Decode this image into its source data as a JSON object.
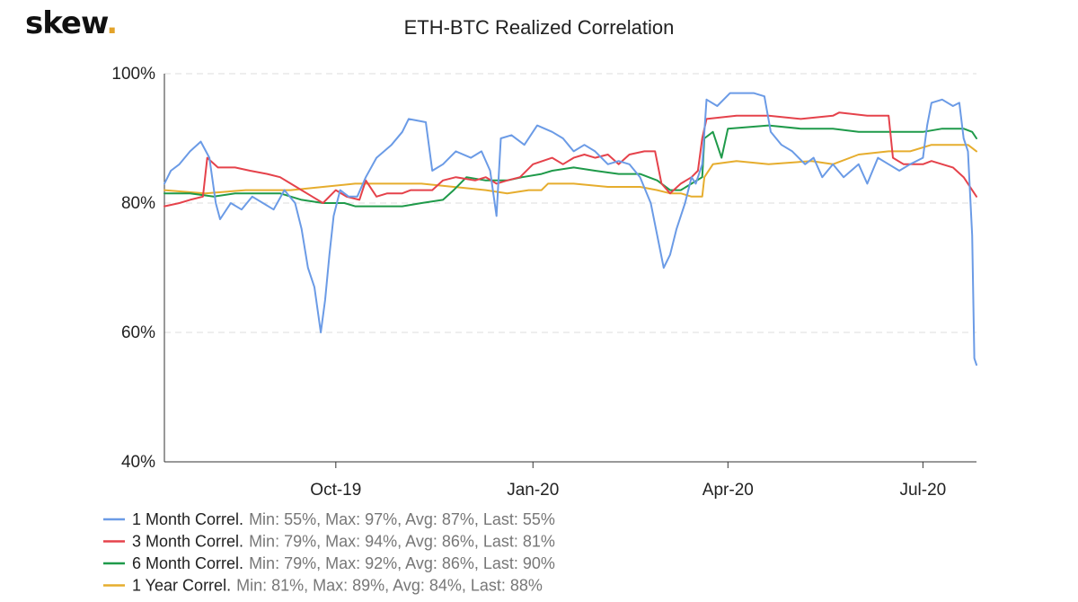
{
  "brand": {
    "text": "skew",
    "dot": "."
  },
  "chart_data": {
    "type": "line",
    "title": "ETH-BTC Realized Correlation",
    "xlabel": "",
    "ylabel": "",
    "x_range": [
      "2019-07-13",
      "2020-07-26"
    ],
    "x_ticks": [
      {
        "date": "2019-10-01",
        "label": "Oct-19"
      },
      {
        "date": "2020-01-01",
        "label": "Jan-20"
      },
      {
        "date": "2020-04-01",
        "label": "Apr-20"
      },
      {
        "date": "2020-07-01",
        "label": "Jul-20"
      }
    ],
    "ylim": [
      40,
      100
    ],
    "y_ticks": [
      {
        "value": 40,
        "label": "40%"
      },
      {
        "value": 60,
        "label": "60%"
      },
      {
        "value": 80,
        "label": "80%"
      },
      {
        "value": 100,
        "label": "100%"
      }
    ],
    "grid": "horizontal",
    "legend_position": "bottom-left",
    "series": [
      {
        "name": "1 Month Correl.",
        "stats": "Min: 55%, Max: 97%, Avg: 87%, Last: 55%",
        "color": "#6b9be6",
        "points": [
          [
            "2019-07-13",
            83
          ],
          [
            "2019-07-16",
            85
          ],
          [
            "2019-07-20",
            86
          ],
          [
            "2019-07-25",
            88
          ],
          [
            "2019-07-30",
            89.5
          ],
          [
            "2019-08-03",
            87
          ],
          [
            "2019-08-06",
            80
          ],
          [
            "2019-08-08",
            77.5
          ],
          [
            "2019-08-13",
            80
          ],
          [
            "2019-08-18",
            79
          ],
          [
            "2019-08-23",
            81
          ],
          [
            "2019-08-28",
            80
          ],
          [
            "2019-09-02",
            79
          ],
          [
            "2019-09-07",
            82
          ],
          [
            "2019-09-12",
            80
          ],
          [
            "2019-09-15",
            76
          ],
          [
            "2019-09-18",
            70
          ],
          [
            "2019-09-21",
            67
          ],
          [
            "2019-09-24",
            60
          ],
          [
            "2019-09-26",
            65
          ],
          [
            "2019-09-28",
            72
          ],
          [
            "2019-09-30",
            78
          ],
          [
            "2019-10-03",
            82
          ],
          [
            "2019-10-07",
            81
          ],
          [
            "2019-10-11",
            81
          ],
          [
            "2019-10-15",
            84
          ],
          [
            "2019-10-20",
            87
          ],
          [
            "2019-10-27",
            89
          ],
          [
            "2019-11-01",
            91
          ],
          [
            "2019-11-04",
            93
          ],
          [
            "2019-11-12",
            92.5
          ],
          [
            "2019-11-15",
            85
          ],
          [
            "2019-11-20",
            86
          ],
          [
            "2019-11-26",
            88
          ],
          [
            "2019-12-03",
            87
          ],
          [
            "2019-12-08",
            88
          ],
          [
            "2019-12-12",
            85
          ],
          [
            "2019-12-15",
            78
          ],
          [
            "2019-12-17",
            90
          ],
          [
            "2019-12-22",
            90.5
          ],
          [
            "2019-12-28",
            89
          ],
          [
            "2020-01-03",
            92
          ],
          [
            "2020-01-10",
            91
          ],
          [
            "2020-01-15",
            90
          ],
          [
            "2020-01-20",
            88
          ],
          [
            "2020-01-25",
            89
          ],
          [
            "2020-01-30",
            88
          ],
          [
            "2020-02-05",
            86
          ],
          [
            "2020-02-10",
            86.5
          ],
          [
            "2020-02-15",
            86
          ],
          [
            "2020-02-20",
            84
          ],
          [
            "2020-02-25",
            80
          ],
          [
            "2020-02-28",
            75
          ],
          [
            "2020-03-02",
            70
          ],
          [
            "2020-03-05",
            72
          ],
          [
            "2020-03-08",
            76
          ],
          [
            "2020-03-12",
            80
          ],
          [
            "2020-03-15",
            84
          ],
          [
            "2020-03-17",
            83
          ],
          [
            "2020-03-20",
            86
          ],
          [
            "2020-03-22",
            96
          ],
          [
            "2020-03-27",
            95
          ],
          [
            "2020-04-02",
            97
          ],
          [
            "2020-04-13",
            97
          ],
          [
            "2020-04-18",
            96.5
          ],
          [
            "2020-04-21",
            91
          ],
          [
            "2020-04-26",
            89
          ],
          [
            "2020-05-01",
            88
          ],
          [
            "2020-05-07",
            86
          ],
          [
            "2020-05-11",
            87
          ],
          [
            "2020-05-15",
            84
          ],
          [
            "2020-05-20",
            86
          ],
          [
            "2020-05-25",
            84
          ],
          [
            "2020-06-01",
            86
          ],
          [
            "2020-06-05",
            83
          ],
          [
            "2020-06-10",
            87
          ],
          [
            "2020-06-15",
            86
          ],
          [
            "2020-06-20",
            85
          ],
          [
            "2020-06-25",
            86
          ],
          [
            "2020-07-01",
            87
          ],
          [
            "2020-07-03",
            92
          ],
          [
            "2020-07-05",
            95.5
          ],
          [
            "2020-07-10",
            96
          ],
          [
            "2020-07-15",
            95
          ],
          [
            "2020-07-18",
            95.5
          ],
          [
            "2020-07-20",
            90
          ],
          [
            "2020-07-22",
            88
          ],
          [
            "2020-07-24",
            75
          ],
          [
            "2020-07-25",
            56
          ],
          [
            "2020-07-26",
            55
          ]
        ]
      },
      {
        "name": "3 Month Correl.",
        "stats": "Min: 79%, Max: 94%, Avg: 86%, Last: 81%",
        "color": "#e5424b",
        "points": [
          [
            "2019-07-13",
            79.5
          ],
          [
            "2019-07-20",
            80
          ],
          [
            "2019-07-25",
            80.5
          ],
          [
            "2019-07-31",
            81
          ],
          [
            "2019-08-02",
            87
          ],
          [
            "2019-08-07",
            85.5
          ],
          [
            "2019-08-15",
            85.5
          ],
          [
            "2019-08-22",
            85
          ],
          [
            "2019-08-30",
            84.5
          ],
          [
            "2019-09-05",
            84
          ],
          [
            "2019-09-10",
            83
          ],
          [
            "2019-09-15",
            82
          ],
          [
            "2019-09-20",
            81
          ],
          [
            "2019-09-25",
            80
          ],
          [
            "2019-10-01",
            82
          ],
          [
            "2019-10-06",
            81
          ],
          [
            "2019-10-12",
            80.5
          ],
          [
            "2019-10-15",
            83.5
          ],
          [
            "2019-10-20",
            81
          ],
          [
            "2019-10-25",
            81.5
          ],
          [
            "2019-11-01",
            81.5
          ],
          [
            "2019-11-05",
            82
          ],
          [
            "2019-11-15",
            82
          ],
          [
            "2019-11-20",
            83.5
          ],
          [
            "2019-11-26",
            84
          ],
          [
            "2019-12-05",
            83.5
          ],
          [
            "2019-12-10",
            84
          ],
          [
            "2019-12-15",
            83
          ],
          [
            "2019-12-20",
            83.5
          ],
          [
            "2019-12-26",
            84
          ],
          [
            "2020-01-01",
            86
          ],
          [
            "2020-01-10",
            87
          ],
          [
            "2020-01-15",
            86
          ],
          [
            "2020-01-20",
            87
          ],
          [
            "2020-01-25",
            87.5
          ],
          [
            "2020-01-30",
            87
          ],
          [
            "2020-02-05",
            87.5
          ],
          [
            "2020-02-10",
            86
          ],
          [
            "2020-02-15",
            87.5
          ],
          [
            "2020-02-22",
            88
          ],
          [
            "2020-02-27",
            88
          ],
          [
            "2020-03-01",
            83
          ],
          [
            "2020-03-05",
            81.5
          ],
          [
            "2020-03-10",
            83
          ],
          [
            "2020-03-15",
            84
          ],
          [
            "2020-03-18",
            85
          ],
          [
            "2020-03-20",
            90
          ],
          [
            "2020-03-22",
            93
          ],
          [
            "2020-04-05",
            93.5
          ],
          [
            "2020-04-20",
            93.5
          ],
          [
            "2020-05-05",
            93
          ],
          [
            "2020-05-20",
            93.5
          ],
          [
            "2020-05-23",
            94
          ],
          [
            "2020-06-05",
            93.5
          ],
          [
            "2020-06-15",
            93.5
          ],
          [
            "2020-06-17",
            87
          ],
          [
            "2020-06-22",
            86
          ],
          [
            "2020-07-01",
            86
          ],
          [
            "2020-07-05",
            86.5
          ],
          [
            "2020-07-10",
            86
          ],
          [
            "2020-07-15",
            85.5
          ],
          [
            "2020-07-20",
            84
          ],
          [
            "2020-07-24",
            82
          ],
          [
            "2020-07-26",
            81
          ]
        ]
      },
      {
        "name": "6 Month Correl.",
        "stats": "Min: 79%, Max: 92%, Avg: 86%, Last: 90%",
        "color": "#1f9a4a",
        "points": [
          [
            "2019-07-13",
            81.5
          ],
          [
            "2019-07-25",
            81.5
          ],
          [
            "2019-08-05",
            81
          ],
          [
            "2019-08-15",
            81.5
          ],
          [
            "2019-08-25",
            81.5
          ],
          [
            "2019-09-05",
            81.5
          ],
          [
            "2019-09-15",
            80.5
          ],
          [
            "2019-09-25",
            80
          ],
          [
            "2019-10-05",
            80
          ],
          [
            "2019-10-10",
            79.5
          ],
          [
            "2019-10-20",
            79.5
          ],
          [
            "2019-11-01",
            79.5
          ],
          [
            "2019-11-10",
            80
          ],
          [
            "2019-11-20",
            80.5
          ],
          [
            "2019-11-25",
            82
          ],
          [
            "2019-12-01",
            84
          ],
          [
            "2019-12-10",
            83.5
          ],
          [
            "2019-12-20",
            83.5
          ],
          [
            "2019-12-27",
            84
          ],
          [
            "2020-01-05",
            84.5
          ],
          [
            "2020-01-10",
            85
          ],
          [
            "2020-01-20",
            85.5
          ],
          [
            "2020-01-30",
            85
          ],
          [
            "2020-02-10",
            84.5
          ],
          [
            "2020-02-20",
            84.5
          ],
          [
            "2020-02-28",
            83.5
          ],
          [
            "2020-03-05",
            82
          ],
          [
            "2020-03-10",
            82
          ],
          [
            "2020-03-15",
            83
          ],
          [
            "2020-03-20",
            84
          ],
          [
            "2020-03-21",
            90
          ],
          [
            "2020-03-25",
            91
          ],
          [
            "2020-03-29",
            87
          ],
          [
            "2020-04-01",
            91.5
          ],
          [
            "2020-04-20",
            92
          ],
          [
            "2020-05-05",
            91.5
          ],
          [
            "2020-05-20",
            91.5
          ],
          [
            "2020-06-01",
            91
          ],
          [
            "2020-06-15",
            91
          ],
          [
            "2020-07-01",
            91
          ],
          [
            "2020-07-10",
            91.5
          ],
          [
            "2020-07-20",
            91.5
          ],
          [
            "2020-07-24",
            91
          ],
          [
            "2020-07-26",
            90
          ]
        ]
      },
      {
        "name": "1 Year Correl.",
        "stats": "Min: 81%, Max: 89%, Avg: 84%, Last: 88%",
        "color": "#e6ad2e",
        "points": [
          [
            "2019-07-13",
            82
          ],
          [
            "2019-08-01",
            81.5
          ],
          [
            "2019-08-20",
            82
          ],
          [
            "2019-09-10",
            82
          ],
          [
            "2019-09-25",
            82.5
          ],
          [
            "2019-10-10",
            83
          ],
          [
            "2019-10-25",
            83
          ],
          [
            "2019-11-10",
            83
          ],
          [
            "2019-11-25",
            82.5
          ],
          [
            "2019-12-10",
            82
          ],
          [
            "2019-12-20",
            81.5
          ],
          [
            "2019-12-30",
            82
          ],
          [
            "2020-01-05",
            82
          ],
          [
            "2020-01-08",
            83
          ],
          [
            "2020-01-20",
            83
          ],
          [
            "2020-02-05",
            82.5
          ],
          [
            "2020-02-20",
            82.5
          ],
          [
            "2020-02-28",
            82
          ],
          [
            "2020-03-05",
            81.5
          ],
          [
            "2020-03-10",
            81.5
          ],
          [
            "2020-03-15",
            81
          ],
          [
            "2020-03-20",
            81
          ],
          [
            "2020-03-21",
            84
          ],
          [
            "2020-03-25",
            86
          ],
          [
            "2020-04-05",
            86.5
          ],
          [
            "2020-04-20",
            86
          ],
          [
            "2020-05-10",
            86.5
          ],
          [
            "2020-05-20",
            86
          ],
          [
            "2020-06-01",
            87.5
          ],
          [
            "2020-06-15",
            88
          ],
          [
            "2020-06-25",
            88
          ],
          [
            "2020-07-05",
            89
          ],
          [
            "2020-07-15",
            89
          ],
          [
            "2020-07-22",
            89
          ],
          [
            "2020-07-26",
            88
          ]
        ]
      }
    ]
  }
}
